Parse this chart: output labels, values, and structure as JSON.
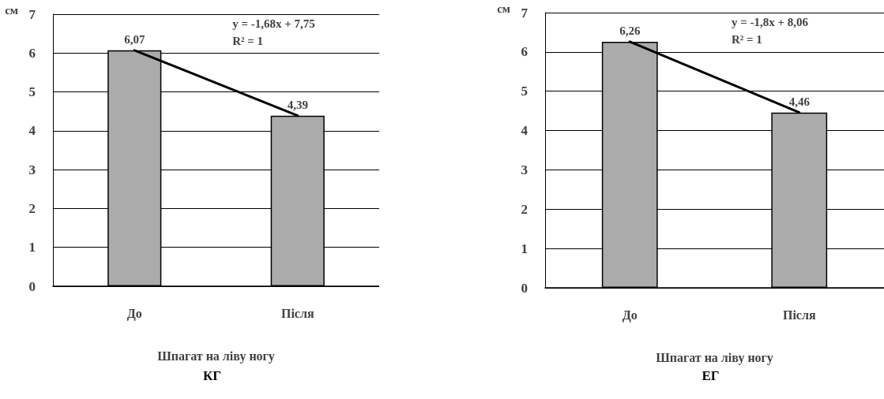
{
  "chart_data": [
    {
      "type": "bar",
      "title": "КГ",
      "xlabel": "Шпагат на ліву ногу",
      "ylabel": "см",
      "categories": [
        "До",
        "Після"
      ],
      "series": [
        {
          "color": "#ababab",
          "values": [
            6.07,
            4.39
          ],
          "value_labels": [
            "6,07",
            "4,39"
          ]
        },
        {
          "type": "line",
          "color": "#000000",
          "x": [
            "До",
            "Після"
          ],
          "values": [
            6.07,
            4.39
          ]
        }
      ],
      "annotations": [
        "y = -1,68x + 7,75",
        "R² = 1"
      ],
      "ylim": [
        0,
        7
      ],
      "yticks": [
        0,
        1,
        2,
        3,
        4,
        5,
        6,
        7
      ],
      "grid": "y",
      "marker": "none",
      "line_style": "solid"
    },
    {
      "type": "bar",
      "title": "ЕГ",
      "xlabel": "Шпагат на ліву ногу",
      "ylabel": "см",
      "categories": [
        "До",
        "Після"
      ],
      "series": [
        {
          "color": "#ababab",
          "values": [
            6.26,
            4.46
          ],
          "value_labels": [
            "6,26",
            "4,46"
          ]
        },
        {
          "type": "line",
          "color": "#000000",
          "x": [
            "До",
            "Після"
          ],
          "values": [
            6.26,
            4.46
          ]
        }
      ],
      "annotations": [
        "y = -1,8x + 8,06",
        "R² = 1"
      ],
      "ylim": [
        0,
        7
      ],
      "yticks": [
        0,
        1,
        2,
        3,
        4,
        5,
        6,
        7
      ],
      "grid": "y",
      "marker": "none",
      "line_style": "solid"
    }
  ]
}
